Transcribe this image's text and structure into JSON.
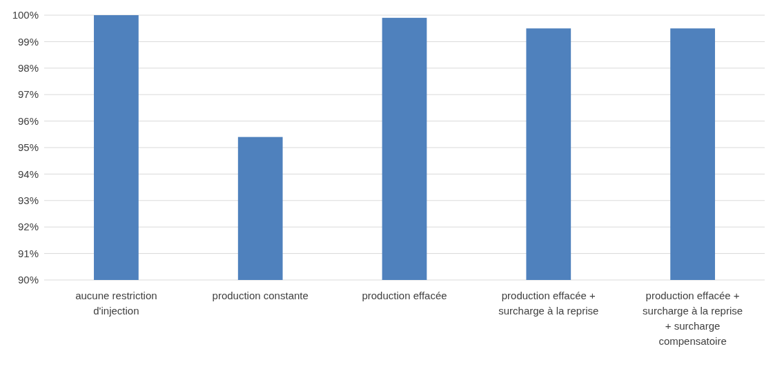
{
  "chart_data": {
    "type": "bar",
    "categories": [
      "aucune restriction d'injection",
      "production constante",
      "production effacée",
      "production effacée + surcharge à la reprise",
      "production effacée + surcharge à la reprise + surcharge compensatoire"
    ],
    "values": [
      100,
      95.4,
      99.9,
      99.5,
      99.5
    ],
    "colors": [
      "#4f81bd",
      "#4f81bd",
      "#4f81bd",
      "#4f81bd",
      "#4f81bd"
    ],
    "ylim": [
      90,
      100
    ],
    "yticks": [
      {
        "value": 90,
        "label": "90%"
      },
      {
        "value": 91,
        "label": "91%"
      },
      {
        "value": 92,
        "label": "92%"
      },
      {
        "value": 93,
        "label": "93%"
      },
      {
        "value": 94,
        "label": "94%"
      },
      {
        "value": 95,
        "label": "95%"
      },
      {
        "value": 96,
        "label": "96%"
      },
      {
        "value": 97,
        "label": "97%"
      },
      {
        "value": 98,
        "label": "98%"
      },
      {
        "value": 99,
        "label": "99%"
      },
      {
        "value": 100,
        "label": "100%"
      }
    ],
    "grid": "y"
  }
}
